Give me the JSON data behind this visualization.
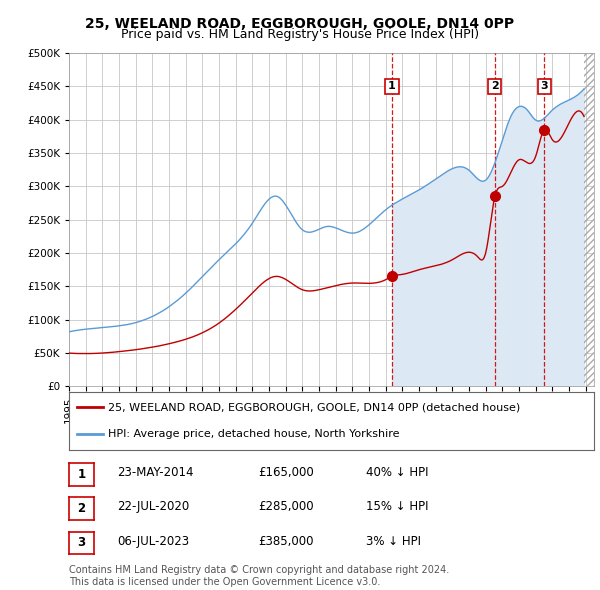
{
  "title": "25, WEELAND ROAD, EGGBOROUGH, GOOLE, DN14 0PP",
  "subtitle": "Price paid vs. HM Land Registry's House Price Index (HPI)",
  "ylim": [
    0,
    500000
  ],
  "yticks": [
    0,
    50000,
    100000,
    150000,
    200000,
    250000,
    300000,
    350000,
    400000,
    450000,
    500000
  ],
  "xlim_start": 1995.0,
  "xlim_end": 2026.5,
  "hpi_color": "#5b9bd5",
  "price_color": "#c00000",
  "background_color": "#ffffff",
  "grid_color": "#c8c8c8",
  "shade_color": "#dce9f5",
  "transactions": [
    {
      "date_num": 2014.38,
      "price": 165000,
      "label": "1"
    },
    {
      "date_num": 2020.55,
      "price": 285000,
      "label": "2"
    },
    {
      "date_num": 2023.51,
      "price": 385000,
      "label": "3"
    }
  ],
  "legend_entries": [
    {
      "label": "25, WEELAND ROAD, EGGBOROUGH, GOOLE, DN14 0PP (detached house)",
      "color": "#c00000"
    },
    {
      "label": "HPI: Average price, detached house, North Yorkshire",
      "color": "#5b9bd5"
    }
  ],
  "table_rows": [
    {
      "num": "1",
      "date": "23-MAY-2014",
      "price": "£165,000",
      "hpi": "40% ↓ HPI"
    },
    {
      "num": "2",
      "date": "22-JUL-2020",
      "price": "£285,000",
      "hpi": "15% ↓ HPI"
    },
    {
      "num": "3",
      "date": "06-JUL-2023",
      "price": "£385,000",
      "hpi": "3% ↓ HPI"
    }
  ],
  "footer": "Contains HM Land Registry data © Crown copyright and database right 2024.\nThis data is licensed under the Open Government Licence v3.0.",
  "title_fontsize": 10,
  "subtitle_fontsize": 9,
  "tick_fontsize": 7.5,
  "legend_fontsize": 8,
  "table_fontsize": 8.5
}
